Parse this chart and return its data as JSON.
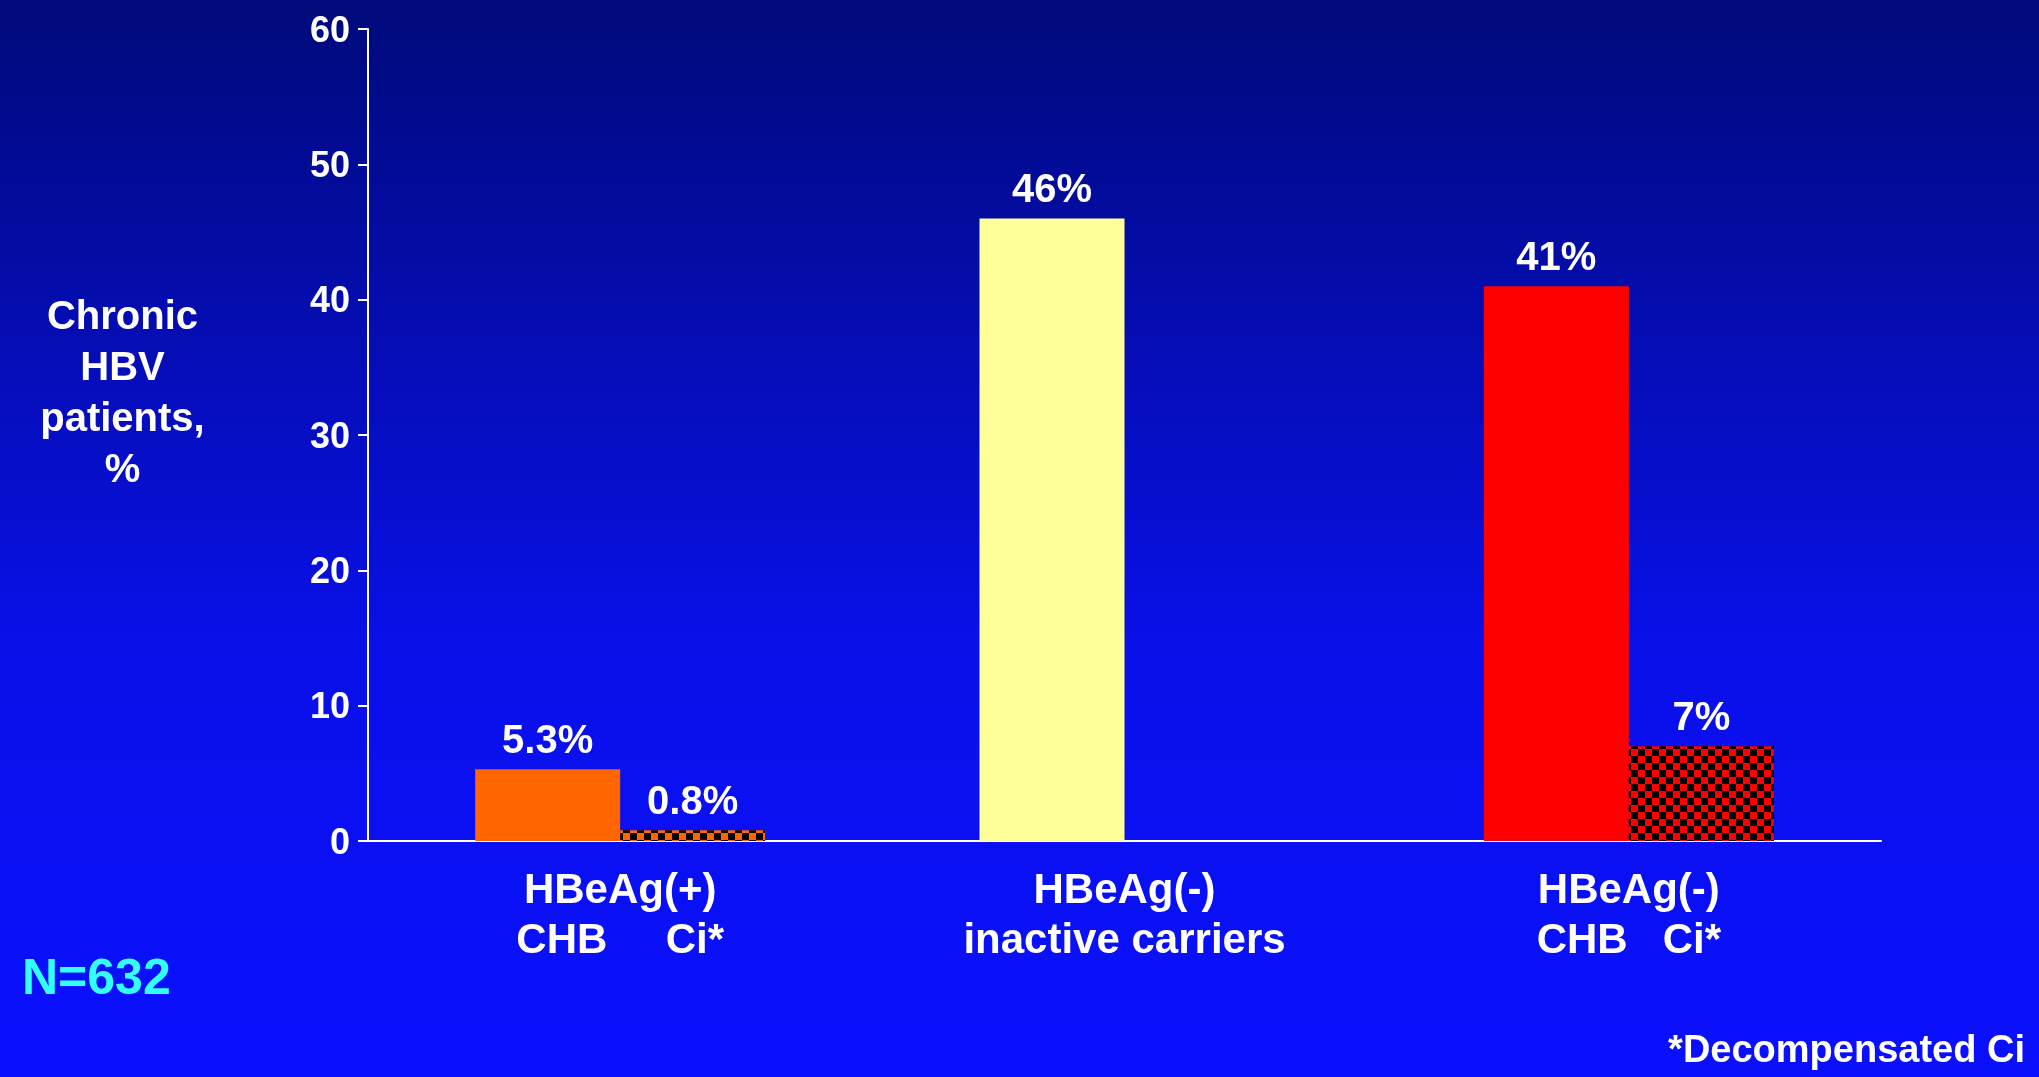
{
  "chart_data": {
    "type": "bar",
    "categories": [
      "HBeAg(+)\nCHB     Ci*",
      "HBeAg(-)\ninactive carriers",
      "HBeAg(-)\nCHB   Ci*"
    ],
    "series": [
      {
        "colors": [
          "#ff6600",
          "#ffff99",
          "#ff0000"
        ],
        "values": [
          5.3,
          46,
          41
        ],
        "value_labels": [
          "5.3%",
          "46%",
          "41%"
        ]
      },
      {
        "colors": [
          "#ff6600",
          "#ff0000",
          "#ff0000"
        ],
        "values": [
          0.8,
          null,
          7
        ],
        "value_labels": [
          "0.8%",
          null,
          "7%"
        ]
      }
    ],
    "ylabel": "Chronic\nHBV\npatients,\n%",
    "ylim": [
      0,
      60
    ],
    "yticks": [
      0,
      10,
      20,
      30,
      40,
      50,
      60
    ],
    "grid": false,
    "annotations": [
      "N=632",
      "*Decompensated Ci"
    ]
  }
}
